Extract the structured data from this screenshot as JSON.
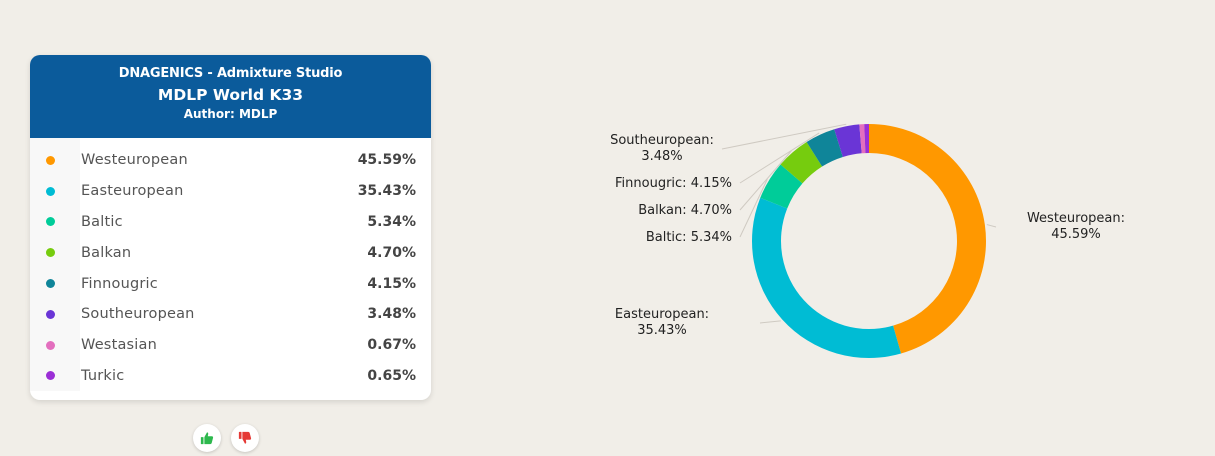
{
  "card": {
    "app": "DNAGENICS - Admixture Studio",
    "title": "MDLP World K33",
    "author": "Author: MDLP"
  },
  "rows": [
    {
      "label": "Westeuropean",
      "value": "45.59%",
      "color": "#ff9800"
    },
    {
      "label": "Easteuropean",
      "value": "35.43%",
      "color": "#00bcd4"
    },
    {
      "label": "Baltic",
      "value": "5.34%",
      "color": "#00cc99"
    },
    {
      "label": "Balkan",
      "value": "4.70%",
      "color": "#76cc0e"
    },
    {
      "label": "Finnougric",
      "value": "4.15%",
      "color": "#0f8599"
    },
    {
      "label": "Southeuropean",
      "value": "3.48%",
      "color": "#6a35d6"
    },
    {
      "label": "Westasian",
      "value": "0.67%",
      "color": "#e36fbe"
    },
    {
      "label": "Turkic",
      "value": "0.65%",
      "color": "#9b2fd6"
    }
  ],
  "votes": {
    "like_icon": "thumbs-up-icon",
    "dislike_icon": "thumbs-down-icon",
    "like_color": "#2db84d",
    "dislike_color": "#e53935"
  },
  "chart_data": {
    "type": "pie",
    "donut": true,
    "slices": [
      {
        "name": "Westeuropean",
        "value": 45.59,
        "color": "#ff9800",
        "label": "Westeuropean:",
        "value_label": "45.59%"
      },
      {
        "name": "Easteuropean",
        "value": 35.43,
        "color": "#00bcd4",
        "label": "Easteuropean:",
        "value_label": "35.43%"
      },
      {
        "name": "Baltic",
        "value": 5.34,
        "color": "#00cc99",
        "label": "Baltic: 5.34%"
      },
      {
        "name": "Balkan",
        "value": 4.7,
        "color": "#76cc0e",
        "label": "Balkan: 4.70%"
      },
      {
        "name": "Finnougric",
        "value": 4.15,
        "color": "#0f8599",
        "label": "Finnougric: 4.15%"
      },
      {
        "name": "Southeuropean",
        "value": 3.48,
        "color": "#6a35d6",
        "label": "Southeuropean:",
        "value_label": "3.48%"
      },
      {
        "name": "Westasian",
        "value": 0.67,
        "color": "#e36fbe"
      },
      {
        "name": "Turkic",
        "value": 0.65,
        "color": "#9b2fd6"
      }
    ]
  }
}
